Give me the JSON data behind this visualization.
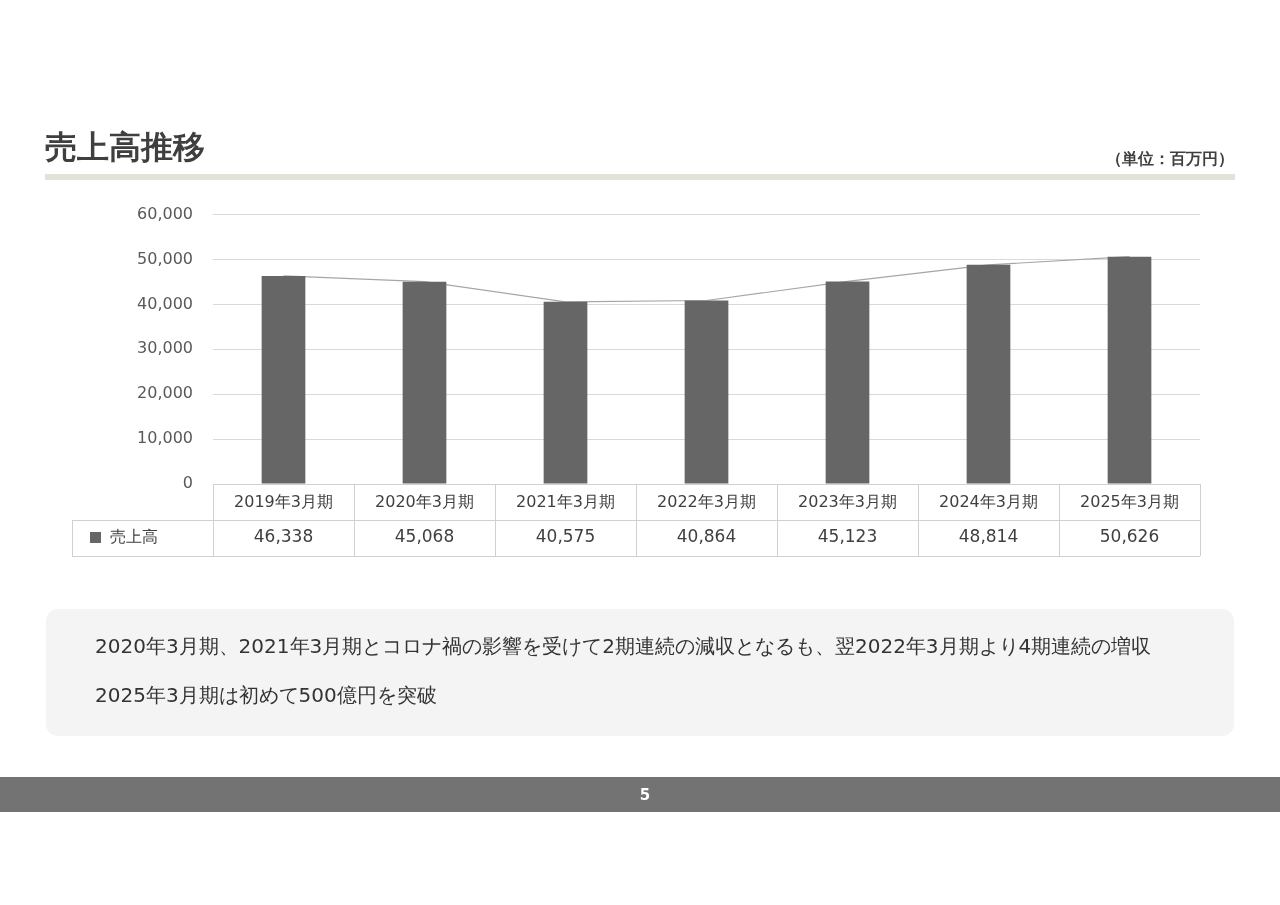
{
  "chart_data": {
    "type": "bar",
    "title": "売上高推移",
    "subtitle": "（単位：百万円）",
    "categories": [
      "2019年3月期",
      "2020年3月期",
      "2021年3月期",
      "2022年3月期",
      "2023年3月期",
      "2024年3月期",
      "2025年3月期"
    ],
    "series": [
      {
        "name": "売上高",
        "color": "#666666",
        "values": [
          46338,
          45068,
          40575,
          40864,
          45123,
          48814,
          50626
        ],
        "value_labels": [
          "46,338",
          "45,068",
          "40,575",
          "40,864",
          "45,123",
          "48,814",
          "50,626"
        ]
      },
      {
        "type": "line",
        "color": "#a6a6a6",
        "values": [
          46338,
          45068,
          40575,
          40864,
          45123,
          48814,
          50626
        ]
      }
    ],
    "ylim": [
      0,
      60000
    ],
    "yticks": [
      0,
      {
        "value": 10000,
        "label": "10,000"
      },
      {
        "value": 20000,
        "label": "20,000"
      },
      {
        "value": 30000,
        "label": "30,000"
      },
      {
        "value": 40000,
        "label": "40,000"
      },
      {
        "value": 50000,
        "label": "50,000"
      },
      {
        "value": 60000,
        "label": "60,000"
      }
    ],
    "grid": "y",
    "legend": "bottom",
    "marker": "none",
    "annotations": [
      "2020年3月期、2021年3月期とコロナ禍の影響を受けて2期連続の減収となるも、翌2022年3月期より4期連続の増収",
      "2025年3月期は初めて500億円を突破",
      "5"
    ]
  }
}
